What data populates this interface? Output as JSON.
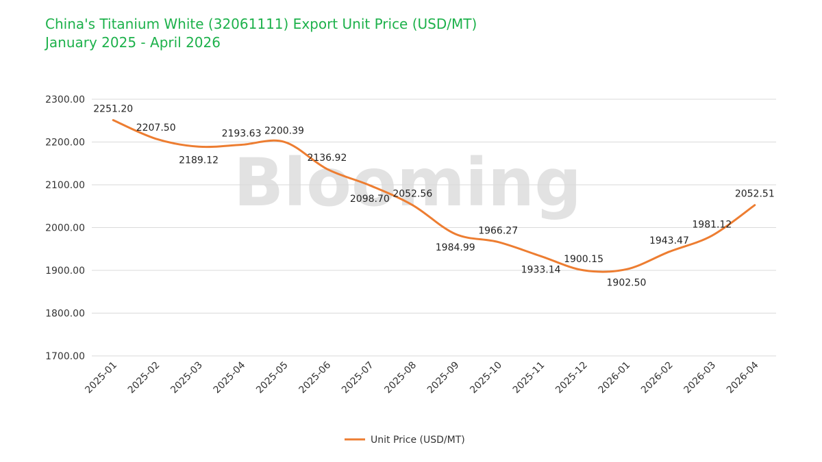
{
  "header": {
    "title": "China's Titanium White (32061111) Export Unit Price (USD/MT)",
    "subtitle": "January 2025 - April 2026"
  },
  "watermark": "Blooming",
  "colors": {
    "title": "#1db14b",
    "series": "#ed7d31",
    "grid": "#d9d9d9"
  },
  "chart_data": {
    "type": "line",
    "x": [
      "2025-01",
      "2025-02",
      "2025-03",
      "2025-04",
      "2025-05",
      "2025-06",
      "2025-07",
      "2025-08",
      "2025-09",
      "2025-10",
      "2025-11",
      "2025-12",
      "2026-01",
      "2026-02",
      "2026-03",
      "2026-04"
    ],
    "y_tick_labels": [
      "1700.00",
      "1800.00",
      "1900.00",
      "2000.00",
      "2100.00",
      "2200.00",
      "2300.00"
    ],
    "ylim": [
      1700,
      2300
    ],
    "grid": true,
    "legend_position": "bottom",
    "series": [
      {
        "name": "Unit Price (USD/MT)",
        "values": [
          2251.2,
          2207.5,
          2189.12,
          2193.63,
          2200.39,
          2136.92,
          2098.7,
          2052.56,
          1984.99,
          1966.27,
          1933.14,
          1900.15,
          1902.5,
          1943.47,
          1981.12,
          2052.51
        ],
        "labels": [
          "2251.20",
          "2207.50",
          "2189.12",
          "2193.63",
          "2200.39",
          "2136.92",
          "2098.70",
          "2052.56",
          "1984.99",
          "1966.27",
          "1933.14",
          "1900.15",
          "1902.50",
          "1943.47",
          "1981.12",
          "2052.51"
        ]
      }
    ]
  }
}
